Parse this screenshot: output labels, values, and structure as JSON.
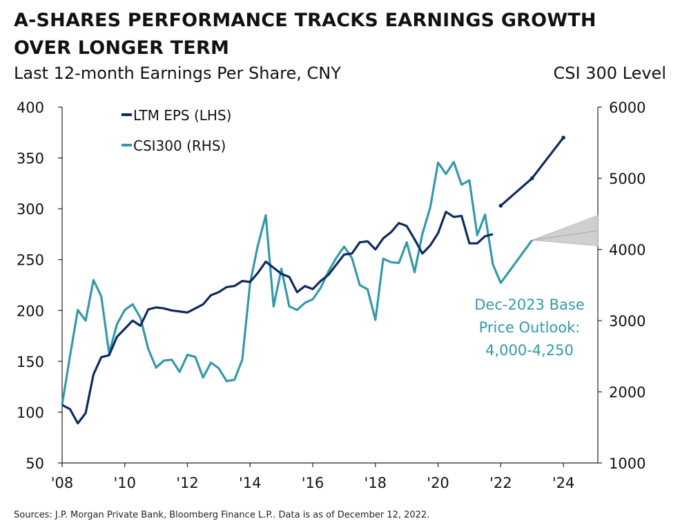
{
  "title": "A-SHARES PERFORMANCE TRACKS EARNINGS GROWTH OVER LONGER TERM",
  "subtitle_left": "Last 12-month Earnings Per Share, CNY",
  "subtitle_right": "CSI 300 Level",
  "footer": "Sources: J.P. Morgan Private Bank, Bloomberg Finance L.P.. Data is as of December 12, 2022.",
  "colors": {
    "eps": "#0d2a5e",
    "csi": "#3399aa",
    "band": "#cfcfcf"
  },
  "chart_data": {
    "type": "line",
    "x_ticks": [
      "'08",
      "'10",
      "'12",
      "'14",
      "'16",
      "'18",
      "'20",
      "'22",
      "'24"
    ],
    "x_range": [
      2008,
      2025.1
    ],
    "y_left": {
      "range": [
        50,
        400
      ],
      "ticks": [
        "400",
        "350",
        "300",
        "250",
        "200",
        "150",
        "100",
        "50"
      ]
    },
    "y_right": {
      "range": [
        1000,
        6000
      ],
      "ticks": [
        "6000",
        "5000",
        "4000",
        "3000",
        "2000",
        "1000"
      ]
    },
    "legend": [
      {
        "label": "LTM EPS (LHS)"
      },
      {
        "label": "CSI300 (RHS)"
      }
    ],
    "annotation": [
      "Dec-2023 Base",
      "Price Outlook:",
      "4,000-4,250"
    ],
    "series": [
      {
        "name": "LTM EPS (LHS)",
        "axis": "left",
        "points": [
          [
            2008.0,
            107
          ],
          [
            2008.25,
            103
          ],
          [
            2008.5,
            89
          ],
          [
            2008.75,
            99
          ],
          [
            2009.0,
            137
          ],
          [
            2009.25,
            154
          ],
          [
            2009.5,
            156
          ],
          [
            2009.75,
            174
          ],
          [
            2010.0,
            182
          ],
          [
            2010.25,
            190
          ],
          [
            2010.5,
            185
          ],
          [
            2010.75,
            201
          ],
          [
            2011.0,
            203
          ],
          [
            2011.25,
            202
          ],
          [
            2011.5,
            200
          ],
          [
            2011.75,
            199
          ],
          [
            2012.0,
            198
          ],
          [
            2012.25,
            202
          ],
          [
            2012.5,
            206
          ],
          [
            2012.75,
            215
          ],
          [
            2013.0,
            218
          ],
          [
            2013.25,
            223
          ],
          [
            2013.5,
            224
          ],
          [
            2013.75,
            229
          ],
          [
            2014.0,
            228
          ],
          [
            2014.25,
            237
          ],
          [
            2014.5,
            248
          ],
          [
            2014.75,
            242
          ],
          [
            2015.0,
            236
          ],
          [
            2015.25,
            233
          ],
          [
            2015.5,
            218
          ],
          [
            2015.75,
            224
          ],
          [
            2016.0,
            221
          ],
          [
            2016.25,
            229
          ],
          [
            2016.5,
            235
          ],
          [
            2016.75,
            245
          ],
          [
            2017.0,
            255
          ],
          [
            2017.25,
            256
          ],
          [
            2017.5,
            267
          ],
          [
            2017.75,
            268
          ],
          [
            2018.0,
            260
          ],
          [
            2018.25,
            271
          ],
          [
            2018.5,
            277
          ],
          [
            2018.75,
            286
          ],
          [
            2019.0,
            283
          ],
          [
            2019.25,
            270
          ],
          [
            2019.5,
            256
          ],
          [
            2019.75,
            264
          ],
          [
            2020.0,
            276
          ],
          [
            2020.25,
            297
          ],
          [
            2020.5,
            292
          ],
          [
            2020.75,
            293
          ],
          [
            2021.0,
            266
          ],
          [
            2021.25,
            266
          ],
          [
            2021.5,
            273
          ],
          [
            2021.75,
            275
          ]
        ],
        "projection": [
          [
            2022.0,
            303
          ],
          [
            2023.0,
            330
          ],
          [
            2024.0,
            370
          ]
        ]
      },
      {
        "name": "CSI300 (RHS)",
        "axis": "right",
        "points": [
          [
            2008.0,
            1820
          ],
          [
            2008.25,
            2500
          ],
          [
            2008.5,
            3150
          ],
          [
            2008.75,
            3000
          ],
          [
            2009.0,
            3570
          ],
          [
            2009.25,
            3340
          ],
          [
            2009.5,
            2540
          ],
          [
            2009.75,
            2950
          ],
          [
            2010.0,
            3150
          ],
          [
            2010.25,
            3230
          ],
          [
            2010.5,
            3040
          ],
          [
            2010.75,
            2600
          ],
          [
            2011.0,
            2340
          ],
          [
            2011.25,
            2440
          ],
          [
            2011.5,
            2450
          ],
          [
            2011.75,
            2280
          ],
          [
            2012.0,
            2520
          ],
          [
            2012.25,
            2490
          ],
          [
            2012.5,
            2200
          ],
          [
            2012.75,
            2410
          ],
          [
            2013.0,
            2330
          ],
          [
            2013.25,
            2150
          ],
          [
            2013.5,
            2170
          ],
          [
            2013.75,
            2450
          ],
          [
            2014.0,
            3530
          ],
          [
            2014.25,
            4060
          ],
          [
            2014.5,
            4480
          ],
          [
            2014.75,
            3200
          ],
          [
            2015.0,
            3730
          ],
          [
            2015.25,
            3200
          ],
          [
            2015.5,
            3150
          ],
          [
            2015.75,
            3250
          ],
          [
            2016.0,
            3300
          ],
          [
            2016.25,
            3460
          ],
          [
            2016.5,
            3690
          ],
          [
            2016.75,
            3880
          ],
          [
            2017.0,
            4040
          ],
          [
            2017.25,
            3880
          ],
          [
            2017.5,
            3500
          ],
          [
            2017.75,
            3440
          ],
          [
            2018.0,
            3010
          ],
          [
            2018.25,
            3870
          ],
          [
            2018.5,
            3820
          ],
          [
            2018.75,
            3810
          ],
          [
            2019.0,
            4100
          ],
          [
            2019.25,
            3680
          ],
          [
            2019.5,
            4220
          ],
          [
            2019.75,
            4590
          ],
          [
            2020.0,
            5220
          ],
          [
            2020.25,
            5060
          ],
          [
            2020.5,
            5230
          ],
          [
            2020.75,
            4910
          ],
          [
            2021.0,
            4970
          ],
          [
            2021.25,
            4200
          ],
          [
            2021.5,
            4490
          ],
          [
            2021.75,
            3790
          ],
          [
            2022.0,
            3530
          ],
          [
            2023.0,
            4130
          ]
        ],
        "outlook_band": {
          "start": [
            2023.0,
            4130
          ],
          "end_x": 2025.1,
          "end_low": 4050,
          "end_high": 4480
        }
      }
    ]
  }
}
